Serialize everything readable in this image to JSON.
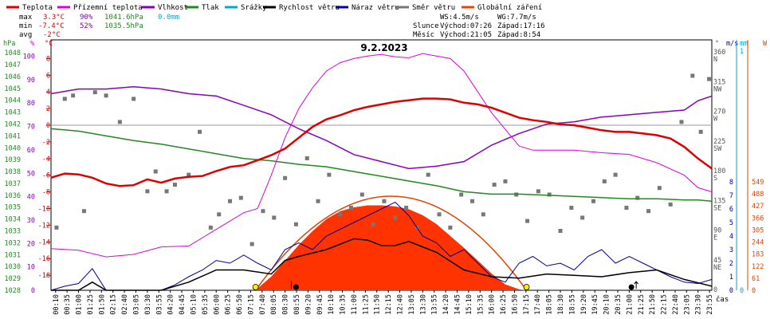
{
  "chart_data": {
    "type": "line",
    "title": "9.2.2023",
    "xlabel": "čas",
    "legend": [
      {
        "name": "Teplota",
        "color": "#dd0000"
      },
      {
        "name": "Přízemní teplota",
        "color": "#dd00dd"
      },
      {
        "name": "Vlhkost",
        "color": "#8800bb"
      },
      {
        "name": "Tlak",
        "color": "#228822"
      },
      {
        "name": "Srážky",
        "color": "#00aacc"
      },
      {
        "name": "Rychlost větru",
        "color": "#000000"
      },
      {
        "name": "Náraz větru",
        "color": "#000099"
      },
      {
        "name": "Směr větru",
        "color": "#777777"
      },
      {
        "name": "Globální záření",
        "color": "#ee4400"
      }
    ],
    "stats": {
      "max": {
        "label": "max",
        "temp": "3.3°C",
        "hum": "90%",
        "press": "1041.6hPa",
        "rain": "0.0mm"
      },
      "min": {
        "label": "min",
        "temp": "-7.4°C",
        "hum": "52%",
        "press": "1035.5hPa"
      },
      "avg": {
        "label": "avg",
        "temp": "-2°C"
      }
    },
    "info": {
      "ws": "WS:4.5m/s",
      "wg": "WG:7.7m/s",
      "sun_label": "Slunce",
      "sunrise": "Východ:07:26",
      "sunset": "Západ:17:16",
      "moon_label": "Měsíc",
      "moonrise": "Východ:21:05",
      "moonset": "Západ:8:54"
    },
    "axes": {
      "hpa": {
        "unit": "hPa",
        "ticks": [
          "1048",
          "1047",
          "1046",
          "1045",
          "1044",
          "1043",
          "1042",
          "1041",
          "1040",
          "1039",
          "1038",
          "1037",
          "1036",
          "1035",
          "1034",
          "1033",
          "1032",
          "1031",
          "1030",
          "1029",
          "1028"
        ]
      },
      "pct": {
        "unit": "%",
        "ticks": [
          "100",
          "90",
          "80",
          "70",
          "60",
          "50",
          "40",
          "30",
          "20",
          "10",
          "0"
        ]
      },
      "degc": {
        "unit": "°C",
        "ticks": [
          "8",
          "6",
          "4",
          "2",
          "0",
          "-2",
          "-4",
          "-6",
          "-8",
          "-10",
          "-12",
          "-14",
          "-16",
          "-18"
        ]
      },
      "dir": {
        "unit": "°",
        "ticks": [
          [
            "360",
            "N"
          ],
          [
            "315",
            "NW"
          ],
          [
            "270",
            "W"
          ],
          [
            "225",
            "SW"
          ],
          [
            "180",
            "S"
          ],
          [
            "135",
            "SE"
          ],
          [
            "90",
            "E"
          ],
          [
            "45",
            "NE"
          ],
          [
            "0",
            ""
          ]
        ]
      },
      "ms": {
        "unit": "m/s",
        "ticks": [
          "8",
          "7",
          "6",
          "5",
          "4",
          "3",
          "2",
          "1",
          "0"
        ]
      },
      "mm": {
        "unit": "mm",
        "ticks": [
          "1",
          "0"
        ]
      },
      "w": {
        "unit": "W",
        "ticks": [
          "549",
          "488",
          "427",
          "366",
          "305",
          "244",
          "183",
          "122",
          "61",
          "0"
        ]
      },
      "time_ticks": [
        "00:10",
        "00:35",
        "01:00",
        "01:25",
        "01:50",
        "02:15",
        "02:40",
        "03:05",
        "03:30",
        "03:55",
        "04:20",
        "04:45",
        "05:10",
        "05:35",
        "06:00",
        "06:25",
        "06:50",
        "07:15",
        "07:40",
        "08:05",
        "08:30",
        "08:55",
        "09:20",
        "09:45",
        "10:10",
        "10:35",
        "11:00",
        "11:25",
        "11:50",
        "12:15",
        "12:40",
        "13:05",
        "13:30",
        "13:55",
        "14:20",
        "14:45",
        "15:10",
        "15:35",
        "16:00",
        "16:25",
        "16:50",
        "17:15",
        "17:40",
        "18:05",
        "18:30",
        "18:55",
        "19:20",
        "19:45",
        "20:10",
        "20:35",
        "21:00",
        "21:25",
        "21:50",
        "22:15",
        "22:40",
        "23:05",
        "23:30",
        "23:55"
      ]
    },
    "series": [
      {
        "name": "Teplota",
        "unit": "°C",
        "t": [
          0,
          0.5,
          1,
          1.5,
          2,
          2.5,
          3,
          3.5,
          4,
          4.5,
          5,
          5.5,
          6,
          6.5,
          7,
          7.5,
          8,
          8.5,
          9,
          9.5,
          10,
          10.5,
          11,
          11.5,
          12,
          12.5,
          13,
          13.5,
          14,
          14.5,
          15,
          15.5,
          16,
          16.5,
          17,
          17.5,
          18,
          18.5,
          19,
          19.5,
          20,
          20.5,
          21,
          21.5,
          22,
          22.5,
          23,
          23.5,
          24
        ],
        "v": [
          -6.3,
          -5.8,
          -5.9,
          -6.3,
          -7.0,
          -7.3,
          -7.2,
          -6.5,
          -6.9,
          -6.4,
          -6.2,
          -6.1,
          -5.5,
          -5.0,
          -4.8,
          -4.2,
          -3.6,
          -2.8,
          -1.5,
          -0.2,
          0.7,
          1.2,
          1.8,
          2.2,
          2.5,
          2.8,
          3.0,
          3.2,
          3.2,
          3.1,
          2.7,
          2.5,
          2.1,
          1.5,
          0.9,
          0.6,
          0.4,
          0.1,
          0.0,
          -0.3,
          -0.6,
          -0.8,
          -0.8,
          -1.0,
          -1.2,
          -1.6,
          -2.6,
          -4.0,
          -5.2
        ]
      },
      {
        "name": "Přízemní teplota",
        "unit": "°C",
        "t": [
          0,
          1,
          2,
          3,
          4,
          5,
          6,
          6.5,
          7,
          7.5,
          8,
          8.5,
          9,
          9.5,
          10,
          10.5,
          11,
          11.5,
          12,
          12.5,
          13,
          13.5,
          14,
          14.5,
          15,
          15.5,
          16,
          16.5,
          17,
          17.5,
          18,
          19,
          20,
          21,
          22,
          23,
          23.5,
          24
        ],
        "v": [
          -14.8,
          -15.0,
          -15.8,
          -15.5,
          -14.6,
          -14.5,
          -12.5,
          -11.5,
          -10.5,
          -10.0,
          -6.0,
          -1.5,
          2.0,
          4.5,
          6.5,
          7.5,
          8.0,
          8.3,
          8.5,
          8.2,
          8.1,
          8.6,
          8.3,
          8.0,
          6.5,
          4.0,
          1.5,
          -0.5,
          -2.5,
          -3.0,
          -3.0,
          -3.0,
          -3.3,
          -3.5,
          -4.5,
          -6.0,
          -7.5,
          -8.0
        ]
      },
      {
        "name": "Vlhkost",
        "unit": "%",
        "t": [
          0,
          1,
          2,
          3,
          4,
          5,
          6,
          7,
          8,
          9,
          10,
          11,
          12,
          13,
          14,
          15,
          16,
          17,
          18,
          19,
          20,
          21,
          22,
          23,
          23.5,
          24
        ],
        "v": [
          84,
          86,
          86,
          87,
          86,
          84,
          83,
          79,
          75,
          69,
          64,
          58,
          55,
          52,
          53,
          55,
          62,
          67,
          71,
          72,
          74,
          75,
          76,
          77,
          81,
          83
        ]
      },
      {
        "name": "Tlak",
        "unit": "hPa",
        "t": [
          0,
          1,
          2,
          3,
          4,
          5,
          6,
          7,
          8,
          9,
          10,
          11,
          12,
          13,
          14,
          15,
          16,
          17,
          18,
          19,
          20,
          21,
          22,
          23,
          23.5,
          24
        ],
        "v": [
          1041.6,
          1041.4,
          1041.0,
          1040.6,
          1040.3,
          1039.9,
          1039.5,
          1039.1,
          1038.9,
          1038.6,
          1038.4,
          1038.0,
          1037.6,
          1037.2,
          1036.8,
          1036.3,
          1036.1,
          1036.1,
          1036.0,
          1035.9,
          1035.8,
          1035.7,
          1035.7,
          1035.6,
          1035.6,
          1035.5
        ]
      },
      {
        "name": "Rychlost větru",
        "unit": "m/s",
        "t": [
          0,
          1,
          1.5,
          2,
          3,
          4,
          5,
          6,
          7,
          8,
          8.5,
          9,
          10,
          11,
          11.5,
          12,
          12.5,
          13,
          14,
          15,
          16,
          17,
          18,
          19,
          20,
          21,
          22,
          23,
          24
        ],
        "v": [
          0,
          0,
          0.6,
          0,
          0,
          0,
          0.6,
          1.5,
          1.5,
          1.2,
          2.2,
          2.5,
          3.0,
          3.8,
          3.7,
          3.3,
          3.3,
          3.6,
          2.8,
          1.5,
          1.0,
          0.9,
          1.2,
          1.1,
          1.0,
          1.3,
          1.5,
          0.8,
          0.3
        ]
      },
      {
        "name": "Náraz větru",
        "unit": "m/s",
        "t": [
          0,
          0.5,
          1,
          1.5,
          2,
          3,
          4,
          4.5,
          5,
          5.5,
          6,
          6.5,
          7,
          7.5,
          8,
          8.5,
          9,
          9.5,
          10,
          10.5,
          11,
          11.5,
          12,
          12.5,
          13,
          13.5,
          14,
          14.5,
          15,
          15.5,
          16,
          16.5,
          17,
          17.5,
          18,
          18.5,
          19,
          19.5,
          20,
          20.5,
          21,
          21.5,
          22,
          22.5,
          23,
          23.5,
          24
        ],
        "v": [
          0,
          0.3,
          0.5,
          1.6,
          0,
          0,
          0,
          0.4,
          1.0,
          1.5,
          2.2,
          2.0,
          2.6,
          2.0,
          1.5,
          3.0,
          3.5,
          3.0,
          4.0,
          4.5,
          5.0,
          5.5,
          6.0,
          6.5,
          5.5,
          4.0,
          3.5,
          2.5,
          3.0,
          2.0,
          1.0,
          0.6,
          2.0,
          2.5,
          1.8,
          2.0,
          1.5,
          2.5,
          3.0,
          2.0,
          2.5,
          2.0,
          1.5,
          1.0,
          0.6,
          0.5,
          0.8
        ]
      },
      {
        "name": "Globální záření",
        "unit": "W",
        "t": [
          7.43,
          8,
          8.5,
          9,
          9.5,
          10,
          10.5,
          11,
          11.5,
          12,
          12.5,
          13,
          13.5,
          14,
          14.5,
          15,
          15.5,
          16,
          16.5,
          17,
          17.27
        ],
        "v": [
          0,
          70,
          150,
          230,
          300,
          360,
          400,
          420,
          430,
          430,
          425,
          410,
          380,
          335,
          275,
          215,
          150,
          85,
          30,
          5,
          0
        ]
      },
      {
        "name": "Směr větru",
        "unit": "°",
        "t": [
          0.2,
          0.5,
          0.8,
          1.2,
          1.6,
          2.0,
          2.5,
          3.0,
          3.5,
          3.8,
          4.2,
          4.5,
          5.0,
          5.4,
          5.8,
          6.1,
          6.5,
          6.9,
          7.3,
          7.7,
          8.1,
          8.5,
          8.9,
          9.3,
          9.7,
          10.1,
          10.5,
          10.9,
          11.3,
          11.7,
          12.1,
          12.5,
          12.9,
          13.3,
          13.7,
          14.1,
          14.5,
          14.9,
          15.3,
          15.7,
          16.1,
          16.5,
          16.9,
          17.3,
          17.7,
          18.1,
          18.5,
          18.9,
          19.3,
          19.7,
          20.1,
          20.5,
          20.9,
          21.3,
          21.7,
          22.1,
          22.5,
          22.9,
          23.3,
          23.6,
          23.9
        ],
        "v": [
          95,
          290,
          295,
          120,
          300,
          295,
          255,
          290,
          150,
          180,
          150,
          160,
          175,
          240,
          95,
          115,
          135,
          140,
          70,
          120,
          110,
          170,
          100,
          200,
          135,
          175,
          115,
          125,
          145,
          100,
          135,
          110,
          125,
          95,
          175,
          115,
          95,
          145,
          135,
          115,
          160,
          165,
          145,
          105,
          150,
          145,
          90,
          125,
          110,
          135,
          165,
          175,
          125,
          140,
          120,
          155,
          130,
          255,
          325,
          240,
          320
        ]
      }
    ],
    "markers": {
      "sunrise_t": 7.43,
      "sunset_t": 17.27,
      "moonrise_t": 21.08,
      "moonset_t": 8.9
    }
  }
}
